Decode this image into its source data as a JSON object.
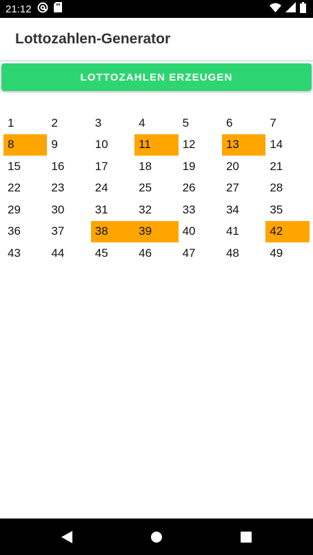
{
  "status_bar": {
    "time": "21:12",
    "left_icons": [
      "at-sign-icon",
      "sd-card-icon"
    ],
    "right_icons": [
      "wifi-icon",
      "signal-icon",
      "battery-icon"
    ]
  },
  "app_bar": {
    "title": "Lottozahlen-Generator"
  },
  "generate_button": {
    "label": "LOTTOZAHLEN ERZEUGEN",
    "color": "#2ed573"
  },
  "grid": {
    "columns": 7,
    "numbers": [
      "1",
      "2",
      "3",
      "4",
      "5",
      "6",
      "7",
      "8",
      "9",
      "10",
      "11",
      "12",
      "13",
      "14",
      "15",
      "16",
      "17",
      "18",
      "19",
      "20",
      "21",
      "22",
      "23",
      "24",
      "25",
      "26",
      "27",
      "28",
      "29",
      "30",
      "31",
      "32",
      "33",
      "34",
      "35",
      "36",
      "37",
      "38",
      "39",
      "40",
      "41",
      "42",
      "43",
      "44",
      "45",
      "46",
      "47",
      "48",
      "49"
    ],
    "drawn": [
      "8",
      "11",
      "13",
      "38",
      "39",
      "42"
    ],
    "highlight_color": "#ffa500"
  },
  "nav_bar": {
    "buttons": [
      "back-icon",
      "home-icon",
      "recents-icon"
    ]
  }
}
